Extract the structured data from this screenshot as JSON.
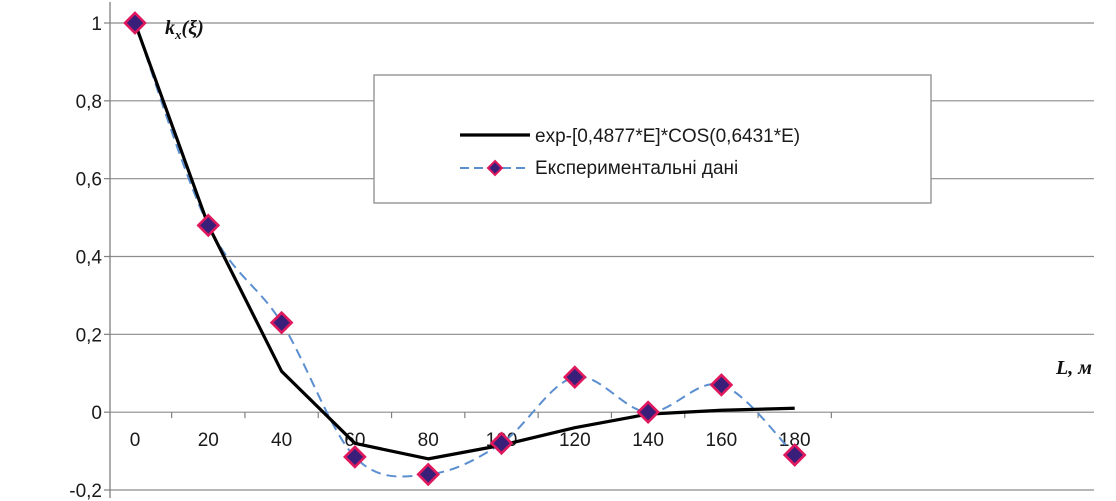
{
  "chart_data": {
    "type": "line",
    "x": [
      0,
      20,
      40,
      60,
      80,
      100,
      120,
      140,
      160,
      180
    ],
    "x_tick_labels": [
      "0",
      "20",
      "40",
      "60",
      "80",
      "100",
      "120",
      "140",
      "160",
      "180"
    ],
    "y_tick_labels": [
      "1",
      "0,8",
      "0,6",
      "0,4",
      "0,2",
      "0",
      "-0,2"
    ],
    "ylim": [
      -0.2,
      1.0
    ],
    "y_ticks": [
      1.0,
      0.8,
      0.6,
      0.4,
      0.2,
      0.0,
      -0.2
    ],
    "ylabel": "k_x(ξ)",
    "ylabel_main": "k",
    "ylabel_sub": "x",
    "ylabel_arg": "(ξ)",
    "xlabel": "L, м",
    "grid": true,
    "legend_position": "top-right",
    "series": [
      {
        "name": "exp-[0,4877*E]*COS(0,6431*E)",
        "style": "solid",
        "color": "#000000",
        "values": [
          1.0,
          0.48,
          0.105,
          -0.08,
          -0.12,
          -0.085,
          -0.04,
          -0.005,
          0.005,
          0.01
        ]
      },
      {
        "name": "Експериментальні дані",
        "style": "dashed-smooth-with-diamond-markers",
        "color": "#5b8fd0",
        "marker_fill": "#3a1f7a",
        "marker_edge": "#e0185e",
        "values": [
          1.0,
          0.48,
          0.23,
          -0.115,
          -0.16,
          -0.08,
          0.09,
          0.0,
          0.07,
          -0.11
        ]
      }
    ]
  }
}
